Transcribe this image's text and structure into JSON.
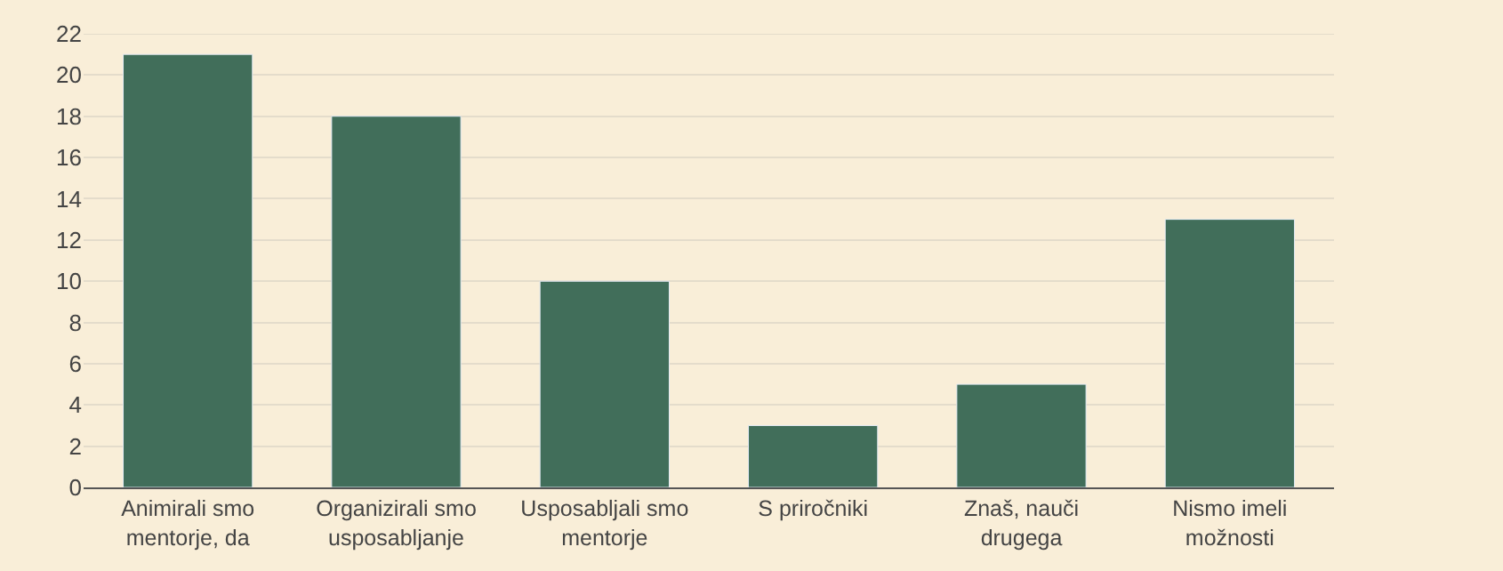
{
  "chart_data": {
    "type": "bar",
    "categories": [
      "Animirali smo\nmentorje, da",
      "Organizirali smo\nusposabljanje",
      "Usposabljali smo\nmentorje",
      "S priročniki",
      "Znaš, nauči\ndrugega",
      "Nismo imeli\nmožnosti"
    ],
    "values": [
      21,
      18,
      10,
      3,
      5,
      13
    ],
    "color": "#416e5a",
    "ylim": [
      0,
      22
    ],
    "yticks": [
      0,
      2,
      4,
      6,
      8,
      10,
      12,
      14,
      16,
      18,
      20,
      22
    ],
    "grid": "y"
  }
}
